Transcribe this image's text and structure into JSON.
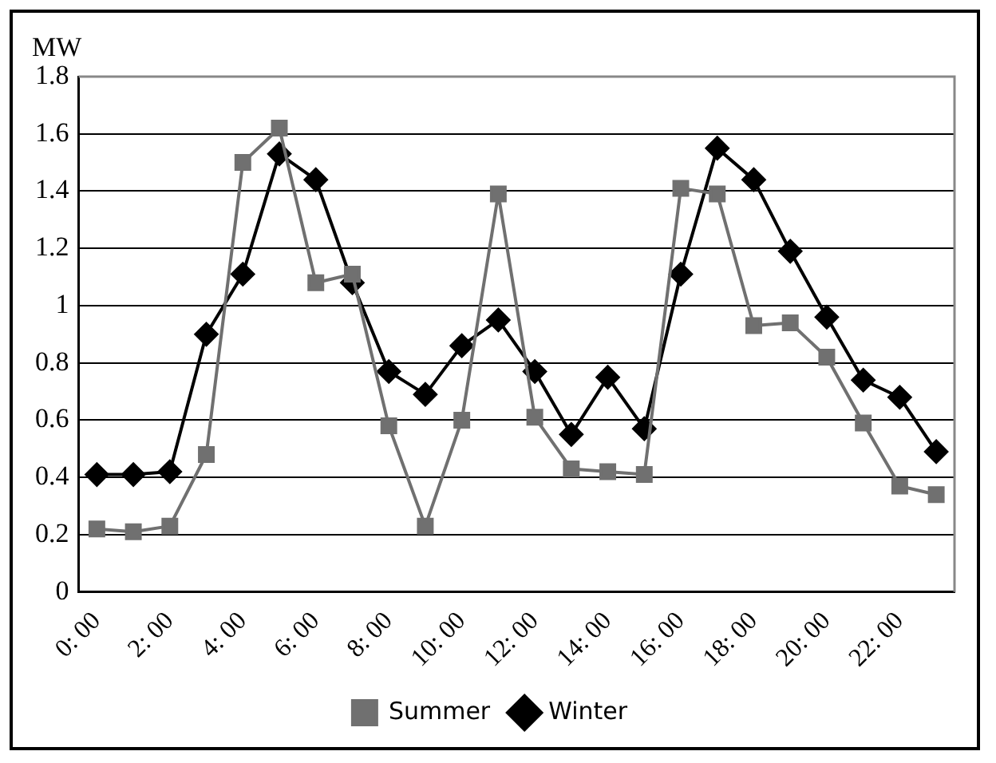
{
  "chart_data": {
    "type": "line",
    "ylabel": "MW",
    "categories": [
      "0: 00",
      null,
      "2: 00",
      null,
      "4: 00",
      null,
      "6: 00",
      null,
      "8: 00",
      null,
      "10: 00",
      null,
      "12: 00",
      null,
      "14: 00",
      null,
      "16: 00",
      null,
      "18: 00",
      null,
      "20: 00",
      null,
      "22: 00",
      null
    ],
    "series": [
      {
        "name": "Winter",
        "color": "#000000",
        "marker": "diamond",
        "values": [
          0.41,
          0.41,
          0.42,
          0.9,
          1.11,
          1.53,
          1.44,
          1.08,
          0.77,
          0.69,
          0.86,
          0.95,
          0.77,
          0.55,
          0.75,
          0.57,
          1.11,
          1.55,
          1.44,
          1.19,
          0.96,
          0.74,
          0.68,
          0.49
        ]
      },
      {
        "name": "Summer",
        "color": "#707070",
        "marker": "square",
        "values": [
          0.22,
          0.21,
          0.23,
          0.48,
          1.5,
          1.62,
          1.08,
          1.11,
          0.58,
          0.23,
          0.6,
          1.39,
          0.61,
          0.43,
          0.42,
          0.41,
          1.41,
          1.39,
          0.93,
          0.94,
          0.82,
          0.59,
          0.37,
          0.34
        ]
      }
    ],
    "ylim": [
      0,
      1.8
    ],
    "yticks": [
      0,
      0.2,
      0.4,
      0.6,
      0.8,
      1,
      1.2,
      1.4,
      1.6,
      1.8
    ],
    "grid": "y",
    "legend": "bottom",
    "line_style": "solid"
  }
}
